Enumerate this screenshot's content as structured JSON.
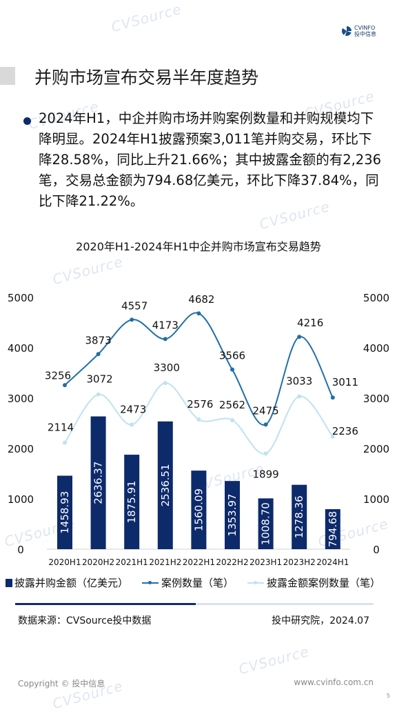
{
  "brand": {
    "logo_text": "CVINFO",
    "logo_sub": "投中信息"
  },
  "watermark": "CVSource",
  "page_title": "并购市场宣布交易半年度趋势",
  "summary": "2024年H1，中企并购市场并购案例数量和并购规模均下降明显。2024年H1披露预案3,011笔并购交易，环比下降28.58%，同比上升21.66%；其中披露金额的有2,236笔，交易总金额为794.68亿美元，环比下降37.84%，同比下降21.22%。",
  "chart_title": "2020年H1-2024年H1中企并购市场宣布交易趋势",
  "chart_data": {
    "type": "bar",
    "categories": [
      "2020H1",
      "2020H2",
      "2021H1",
      "2021H2",
      "2022H1",
      "2022H2",
      "2023H1",
      "2023H2",
      "2024H1"
    ],
    "series": [
      {
        "name": "披露并购金额（亿美元）",
        "type": "bar",
        "axis": "left",
        "color": "#0d2a6b",
        "values": [
          1458.93,
          2636.37,
          1875.91,
          2536.51,
          1560.09,
          1353.97,
          1008.7,
          1278.36,
          794.68
        ],
        "labels": [
          "1458.93",
          "2636.37",
          "1875.91",
          "2536.51",
          "1560.09",
          "1353.97",
          "1008.70",
          "1278.36",
          "794.68"
        ]
      },
      {
        "name": "案例数量（笔）",
        "type": "line",
        "axis": "right",
        "color": "#1f6fa8",
        "values": [
          3256,
          3873,
          4557,
          4173,
          4682,
          3566,
          2475,
          4216,
          3011
        ]
      },
      {
        "name": "披露金额案例数量（笔）",
        "type": "line",
        "axis": "right",
        "color": "#bfe2f2",
        "values": [
          2114,
          3072,
          2473,
          3300,
          2576,
          2562,
          1899,
          3033,
          2236
        ]
      }
    ],
    "y_left": {
      "min": 0,
      "max": 5000,
      "ticks": [
        0,
        1000,
        2000,
        3000,
        4000,
        5000
      ]
    },
    "y_right": {
      "min": 0,
      "max": 5000,
      "ticks": [
        0,
        1000,
        2000,
        3000,
        4000,
        5000
      ]
    },
    "grid": false,
    "legend": "bottom"
  },
  "footer": {
    "source": "数据来源：CVSource投中数据",
    "org": "投中研究院，2024.07",
    "copyright": "Copyright © 投中信息",
    "url": "www.cvinfo.com.cn",
    "page": "5"
  }
}
